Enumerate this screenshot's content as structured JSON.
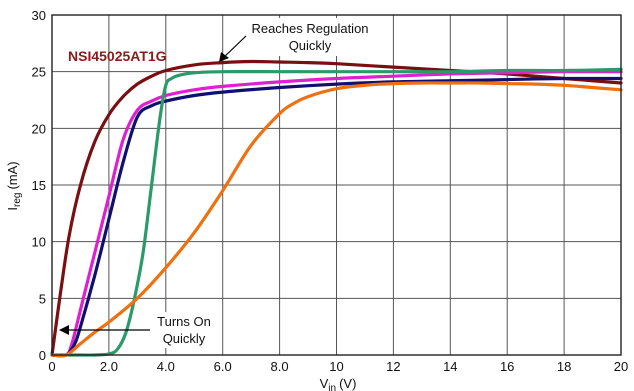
{
  "chart_data": {
    "type": "line",
    "xlabel": "V",
    "xlabel_sub": "in",
    "xlabel_unit": "(V)",
    "ylabel": "I",
    "ylabel_sub": "reg",
    "ylabel_unit": "(mA)",
    "xlim": [
      0,
      20
    ],
    "ylim": [
      0,
      30
    ],
    "x_ticks": [
      0,
      2,
      4,
      6,
      8,
      10,
      12,
      14,
      16,
      18,
      20
    ],
    "x_tick_labels": [
      "0",
      "2.0",
      "4.0",
      "6.0",
      "8.0",
      "10",
      "12",
      "14",
      "16",
      "18",
      "20"
    ],
    "y_ticks": [
      0,
      5,
      10,
      15,
      20,
      25,
      30
    ],
    "y_tick_labels": [
      "0",
      "5",
      "10",
      "15",
      "20",
      "25",
      "30"
    ],
    "grid": true,
    "annotations": [
      {
        "id": "regulation",
        "lines": [
          "Reaches Regulation",
          "Quickly"
        ]
      },
      {
        "id": "turn-on",
        "lines": [
          "Turns On",
          "Quickly"
        ]
      }
    ],
    "device_label": {
      "text": "NSI45025AT1G",
      "color": "#8b1a1a"
    },
    "series": [
      {
        "color": "#7a0f12",
        "x": [
          0,
          0.3,
          0.6,
          1.0,
          1.5,
          2.0,
          2.5,
          3.0,
          3.5,
          4.0,
          5.0,
          6.0,
          7.0,
          8.0,
          9.0,
          10,
          12,
          14,
          16,
          18,
          20
        ],
        "y": [
          0,
          5.5,
          10.5,
          15.0,
          18.8,
          21.2,
          22.8,
          23.9,
          24.6,
          25.1,
          25.6,
          25.8,
          25.9,
          25.85,
          25.8,
          25.7,
          25.4,
          25.1,
          24.8,
          24.4,
          24.0
        ]
      },
      {
        "color": "#e020d0",
        "x": [
          0,
          0.5,
          0.7,
          1.0,
          1.5,
          2.0,
          2.5,
          3.0,
          3.5,
          4.0,
          5.0,
          6.0,
          8.0,
          10,
          12,
          14,
          16,
          18,
          20
        ],
        "y": [
          0,
          0,
          1.0,
          4.0,
          9.0,
          14.0,
          19.0,
          21.6,
          22.4,
          22.9,
          23.4,
          23.7,
          24.1,
          24.4,
          24.6,
          24.8,
          24.9,
          25.0,
          25.0
        ]
      },
      {
        "color": "#101070",
        "x": [
          0,
          0.5,
          0.8,
          1.0,
          1.5,
          2.0,
          2.5,
          3.0,
          3.5,
          4.0,
          5.0,
          6.0,
          8.0,
          10,
          12,
          14,
          16,
          18,
          20
        ],
        "y": [
          0,
          0,
          1.0,
          2.5,
          7.0,
          12.0,
          17.0,
          21.0,
          22.0,
          22.4,
          22.9,
          23.2,
          23.6,
          23.9,
          24.1,
          24.2,
          24.3,
          24.4,
          24.4
        ]
      },
      {
        "color": "#2a9a6a",
        "x": [
          0,
          0.5,
          1.0,
          1.5,
          2.0,
          2.3,
          2.6,
          2.9,
          3.2,
          3.5,
          3.8,
          4.0,
          4.2,
          4.5,
          5.0,
          6.0,
          8.0,
          10,
          12,
          14,
          16,
          18,
          20
        ],
        "y": [
          0,
          0,
          0,
          0,
          0.1,
          0.5,
          2.0,
          5.0,
          9.0,
          15.0,
          21.0,
          23.8,
          24.4,
          24.7,
          24.9,
          25.0,
          25.0,
          25.0,
          25.0,
          25.0,
          25.1,
          25.1,
          25.2
        ]
      },
      {
        "color": "#f07010",
        "x": [
          0,
          0.5,
          1.0,
          1.5,
          2.0,
          3.0,
          4.0,
          5.0,
          6.0,
          7.0,
          8.0,
          8.5,
          9.0,
          10,
          11,
          12,
          13,
          14,
          15,
          16,
          17,
          18,
          19,
          20
        ],
        "y": [
          0,
          0,
          1.0,
          2.0,
          2.9,
          5.0,
          7.7,
          10.8,
          14.5,
          18.5,
          21.3,
          22.2,
          22.8,
          23.5,
          23.8,
          23.95,
          24.0,
          24.0,
          24.0,
          23.95,
          23.9,
          23.8,
          23.6,
          23.4
        ]
      }
    ]
  }
}
